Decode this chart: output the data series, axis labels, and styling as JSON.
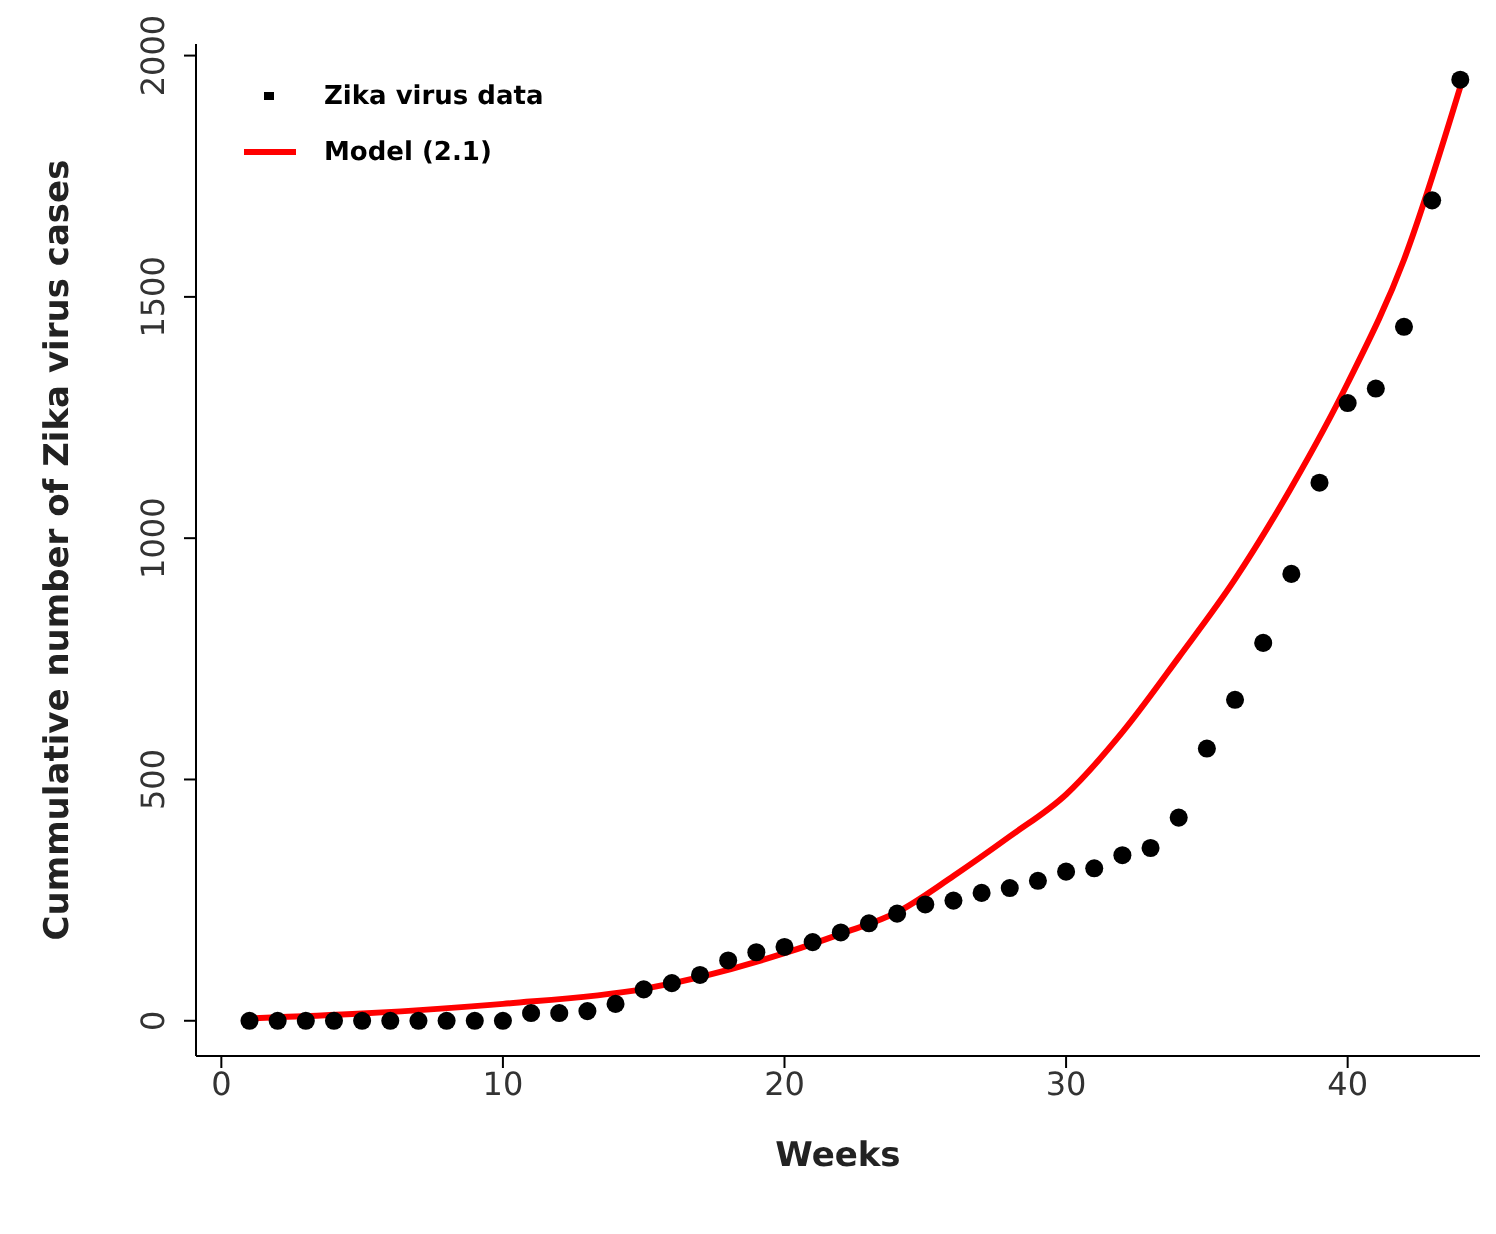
{
  "chart_data": {
    "type": "scatter",
    "xlabel": "Weeks",
    "ylabel": "Cummulative number of  Zika virus cases",
    "xlim": [
      -0.9,
      44.7
    ],
    "ylim": [
      -73,
      2024
    ],
    "xticks": [
      0,
      10,
      20,
      30,
      40
    ],
    "yticks": [
      0,
      500,
      1000,
      1500,
      2000
    ],
    "grid": false,
    "legend": "top left",
    "series": [
      {
        "name": "Zika virus data",
        "marker": "circle",
        "color": "#000000",
        "x": [
          1,
          2,
          3,
          4,
          5,
          6,
          7,
          8,
          9,
          10,
          11,
          12,
          13,
          14,
          15,
          16,
          17,
          18,
          19,
          20,
          21,
          22,
          23,
          24,
          25,
          26,
          27,
          28,
          29,
          30,
          31,
          32,
          33,
          34,
          35,
          36,
          37,
          38,
          39,
          40,
          41,
          42,
          43,
          44
        ],
        "values": [
          0,
          0,
          0,
          0,
          0,
          0,
          0,
          0,
          0,
          0,
          16,
          16,
          20,
          35,
          65,
          78,
          95,
          125,
          142,
          153,
          163,
          183,
          202,
          222,
          241,
          249,
          265,
          275,
          290,
          309,
          316,
          343,
          358,
          421,
          564,
          665,
          783,
          926,
          1115,
          1280,
          1310,
          1438,
          1700,
          1950
        ]
      },
      {
        "name": "Model (2.1)",
        "type": "line",
        "marker": "none",
        "line_style": "solid",
        "color": "#ff0000",
        "x": [
          1,
          5,
          10,
          15,
          20,
          22,
          24,
          26,
          28,
          30,
          32,
          34,
          36,
          38,
          40,
          42,
          44
        ],
        "values": [
          5,
          15,
          35,
          66,
          140,
          180,
          225,
          300,
          382,
          469,
          598,
          753,
          915,
          1105,
          1321,
          1577,
          1935
        ]
      }
    ]
  }
}
